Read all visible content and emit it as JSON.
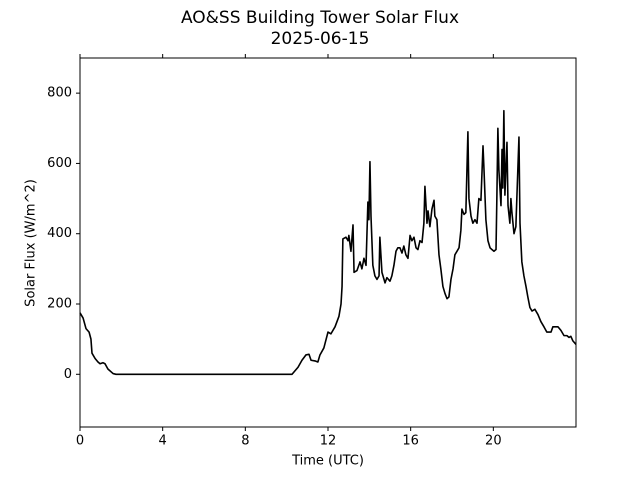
{
  "chart_data": {
    "type": "line",
    "title": "AO&SS Building Tower Solar Flux",
    "subtitle": "2025-06-15",
    "x_label": "Time (UTC)",
    "y_label": "Solar Flux (W/m^2)",
    "xlim": [
      0,
      24
    ],
    "xticks": [
      0,
      4,
      8,
      12,
      16,
      20
    ],
    "ylim": [
      -150,
      900
    ],
    "yticks": [
      0,
      200,
      400,
      600,
      800
    ],
    "grid": false,
    "series": [
      {
        "color": "#000000",
        "x": [
          0,
          0.15,
          0.29,
          0.44,
          0.53,
          0.58,
          0.73,
          0.87,
          0.97,
          1.11,
          1.21,
          1.35,
          1.6,
          1.74,
          10.26,
          10.55,
          10.74,
          10.93,
          11.08,
          11.18,
          11.37,
          11.51,
          11.61,
          11.8,
          12,
          12.14,
          12.34,
          12.53,
          12.63,
          12.68,
          12.72,
          12.87,
          12.97,
          13.01,
          13.11,
          13.21,
          13.26,
          13.4,
          13.55,
          13.64,
          13.74,
          13.84,
          13.93,
          13.98,
          14.03,
          14.08,
          14.17,
          14.27,
          14.37,
          14.47,
          14.51,
          14.61,
          14.76,
          14.85,
          15,
          15.09,
          15.19,
          15.29,
          15.38,
          15.48,
          15.58,
          15.67,
          15.77,
          15.87,
          15.97,
          16.06,
          16.16,
          16.26,
          16.35,
          16.45,
          16.55,
          16.64,
          16.69,
          16.79,
          16.84,
          16.93,
          17.03,
          17.13,
          17.17,
          17.27,
          17.37,
          17.46,
          17.56,
          17.66,
          17.76,
          17.85,
          17.95,
          18.05,
          18.14,
          18.24,
          18.34,
          18.43,
          18.48,
          18.58,
          18.67,
          18.77,
          18.82,
          18.92,
          19.01,
          19.11,
          19.21,
          19.3,
          19.4,
          19.5,
          19.55,
          19.64,
          19.74,
          19.84,
          19.93,
          20.03,
          20.13,
          20.17,
          20.22,
          20.27,
          20.37,
          20.42,
          20.46,
          20.51,
          20.56,
          20.66,
          20.71,
          20.8,
          20.85,
          20.9,
          21,
          21.09,
          21.24,
          21.29,
          21.38,
          21.48,
          21.58,
          21.67,
          21.77,
          21.87,
          22.01,
          22.16,
          22.3,
          22.45,
          22.59,
          22.79,
          22.88,
          23.13,
          23.27,
          23.42,
          23.56,
          23.66,
          23.75,
          23.85,
          24
        ],
        "values": [
          175,
          160,
          130,
          120,
          100,
          60,
          45,
          35,
          30,
          33,
          30,
          15,
          2,
          0,
          0,
          20,
          40,
          55,
          57,
          40,
          38,
          35,
          55,
          75,
          120,
          115,
          135,
          165,
          200,
          250,
          385,
          390,
          380,
          395,
          350,
          425,
          290,
          295,
          320,
          300,
          330,
          310,
          490,
          440,
          605,
          450,
          310,
          280,
          270,
          280,
          390,
          290,
          260,
          275,
          265,
          280,
          310,
          350,
          360,
          360,
          345,
          365,
          340,
          330,
          395,
          380,
          390,
          360,
          355,
          380,
          375,
          430,
          535,
          430,
          465,
          420,
          470,
          495,
          450,
          440,
          340,
          300,
          250,
          230,
          215,
          220,
          270,
          300,
          340,
          350,
          360,
          410,
          470,
          455,
          460,
          690,
          500,
          450,
          430,
          440,
          430,
          500,
          495,
          650,
          580,
          440,
          380,
          360,
          355,
          350,
          355,
          500,
          700,
          580,
          480,
          640,
          530,
          750,
          510,
          660,
          480,
          430,
          500,
          460,
          400,
          420,
          675,
          430,
          320,
          280,
          250,
          220,
          190,
          180,
          185,
          170,
          150,
          135,
          120,
          120,
          135,
          135,
          125,
          110,
          110,
          105,
          108,
          95,
          85
        ]
      }
    ]
  }
}
